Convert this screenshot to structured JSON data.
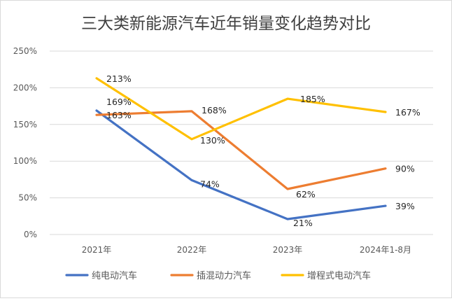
{
  "chart_data": {
    "type": "line",
    "title": "三大类新能源汽车近年销量变化趋势对比",
    "xlabel": "",
    "ylabel": "",
    "categories": [
      "2021年",
      "2022年",
      "2023年",
      "2024年1-8月"
    ],
    "y_ticks": [
      "0%",
      "50%",
      "100%",
      "150%",
      "200%",
      "250%"
    ],
    "ylim": [
      0,
      250
    ],
    "grid": true,
    "legend_position": "bottom",
    "series": [
      {
        "name": "纯电动汽车",
        "color": "#4472c4",
        "values": [
          169,
          74,
          21,
          39
        ],
        "labels": [
          "169%",
          "74%",
          "21%",
          "39%"
        ]
      },
      {
        "name": "插混动力汽车",
        "color": "#ed7d31",
        "values": [
          163,
          168,
          62,
          90
        ],
        "labels": [
          "163%",
          "168%",
          "62%",
          "90%"
        ]
      },
      {
        "name": "增程式电动汽车",
        "color": "#ffc000",
        "values": [
          213,
          130,
          185,
          167
        ],
        "labels": [
          "213%",
          "130%",
          "185%",
          "167%"
        ]
      }
    ]
  }
}
